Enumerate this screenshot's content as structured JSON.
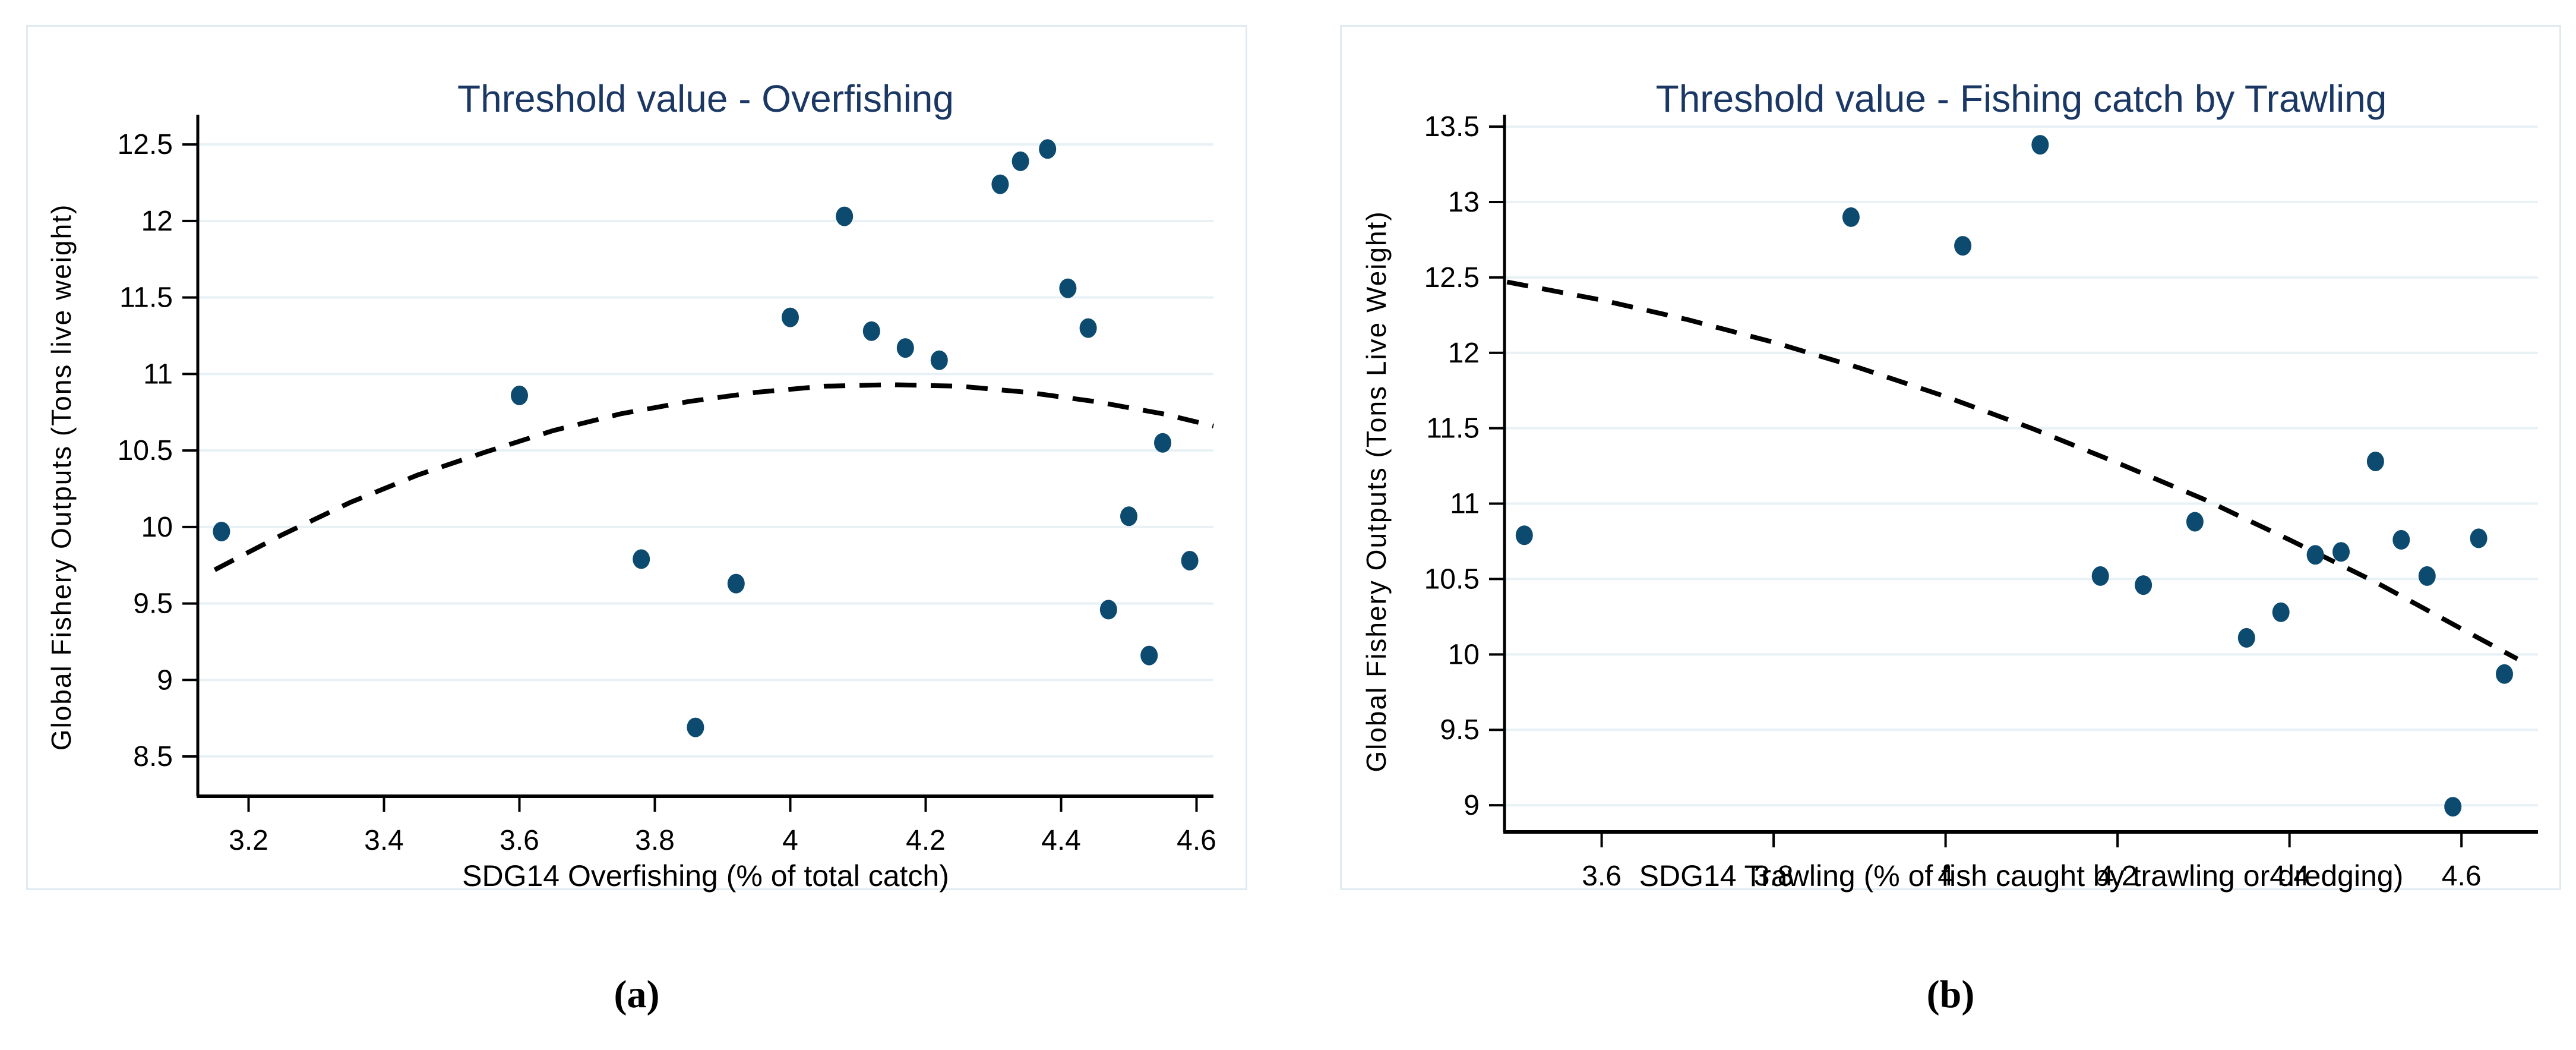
{
  "colors": {
    "marker": "#0d4a6f",
    "title_text": "#1b3865",
    "panel_border": "#dfeaf1",
    "gridline": "#e8f1f5",
    "axis_line": "#000000",
    "trend_line": "#000000",
    "background": "#ffffff"
  },
  "chart_data": [
    {
      "type": "scatter",
      "title": "Threshold value - Overfishing",
      "xlabel": "SDG14 Overfishing (% of total catch)",
      "ylabel": "Global Fishery Outputs (Tons live weight)",
      "caption": "(a)",
      "legend": "none",
      "grid": "horizontal",
      "x_ticks": [
        3.2,
        3.4,
        3.6,
        3.8,
        4,
        4.2,
        4.4,
        4.6
      ],
      "y_ticks": [
        8.5,
        9,
        9.5,
        10,
        10.5,
        11,
        11.5,
        12,
        12.5
      ],
      "xlim": [
        3.125,
        4.625
      ],
      "ylim": [
        8.24,
        12.648
      ],
      "points": [
        [
          3.16,
          9.97
        ],
        [
          3.6,
          10.86
        ],
        [
          3.78,
          9.79
        ],
        [
          3.86,
          8.69
        ],
        [
          3.92,
          9.63
        ],
        [
          4.0,
          11.37
        ],
        [
          4.08,
          12.03
        ],
        [
          4.12,
          11.28
        ],
        [
          4.17,
          11.17
        ],
        [
          4.22,
          11.09
        ],
        [
          4.31,
          12.24
        ],
        [
          4.34,
          12.39
        ],
        [
          4.38,
          12.47
        ],
        [
          4.41,
          11.56
        ],
        [
          4.44,
          11.3
        ],
        [
          4.47,
          9.46
        ],
        [
          4.5,
          10.07
        ],
        [
          4.53,
          9.16
        ],
        [
          4.55,
          10.55
        ],
        [
          4.59,
          9.78
        ]
      ],
      "trend_dashed": [
        [
          3.15,
          9.72
        ],
        [
          3.25,
          9.95
        ],
        [
          3.35,
          10.16
        ],
        [
          3.45,
          10.34
        ],
        [
          3.55,
          10.49
        ],
        [
          3.65,
          10.63
        ],
        [
          3.75,
          10.74
        ],
        [
          3.85,
          10.82
        ],
        [
          3.95,
          10.88
        ],
        [
          4.05,
          10.92
        ],
        [
          4.15,
          10.93
        ],
        [
          4.25,
          10.92
        ],
        [
          4.35,
          10.88
        ],
        [
          4.45,
          10.82
        ],
        [
          4.55,
          10.74
        ],
        [
          4.625,
          10.66
        ]
      ]
    },
    {
      "type": "scatter",
      "title": "Threshold value - Fishing catch by Trawling",
      "xlabel": "SDG14 Trawling (% of fish caught by trawling or dredging)",
      "ylabel": "Global Fishery Outputs (Tons Live Weight)",
      "caption": "(b)",
      "legend": "none",
      "grid": "horizontal",
      "x_ticks": [
        3.6,
        3.8,
        4,
        4.2,
        4.4,
        4.6
      ],
      "y_ticks": [
        9,
        9.5,
        10,
        10.5,
        11,
        11.5,
        12,
        12.5,
        13,
        13.5
      ],
      "xlim": [
        3.487,
        4.689
      ],
      "ylim": [
        8.823,
        13.532
      ],
      "points": [
        [
          3.51,
          10.79
        ],
        [
          3.89,
          12.9
        ],
        [
          4.02,
          12.71
        ],
        [
          4.11,
          13.38
        ],
        [
          4.18,
          10.52
        ],
        [
          4.23,
          10.46
        ],
        [
          4.29,
          10.88
        ],
        [
          4.35,
          10.11
        ],
        [
          4.39,
          10.28
        ],
        [
          4.43,
          10.66
        ],
        [
          4.46,
          10.68
        ],
        [
          4.5,
          11.28
        ],
        [
          4.53,
          10.76
        ],
        [
          4.56,
          10.52
        ],
        [
          4.59,
          8.99
        ],
        [
          4.62,
          10.77
        ],
        [
          4.65,
          9.87
        ]
      ],
      "trend_dashed": [
        [
          3.49,
          12.47
        ],
        [
          3.6,
          12.35
        ],
        [
          3.7,
          12.22
        ],
        [
          3.8,
          12.07
        ],
        [
          3.9,
          11.9
        ],
        [
          4.0,
          11.71
        ],
        [
          4.1,
          11.5
        ],
        [
          4.2,
          11.27
        ],
        [
          4.3,
          11.03
        ],
        [
          4.4,
          10.76
        ],
        [
          4.5,
          10.48
        ],
        [
          4.6,
          10.17
        ],
        [
          4.665,
          9.97
        ]
      ]
    }
  ]
}
